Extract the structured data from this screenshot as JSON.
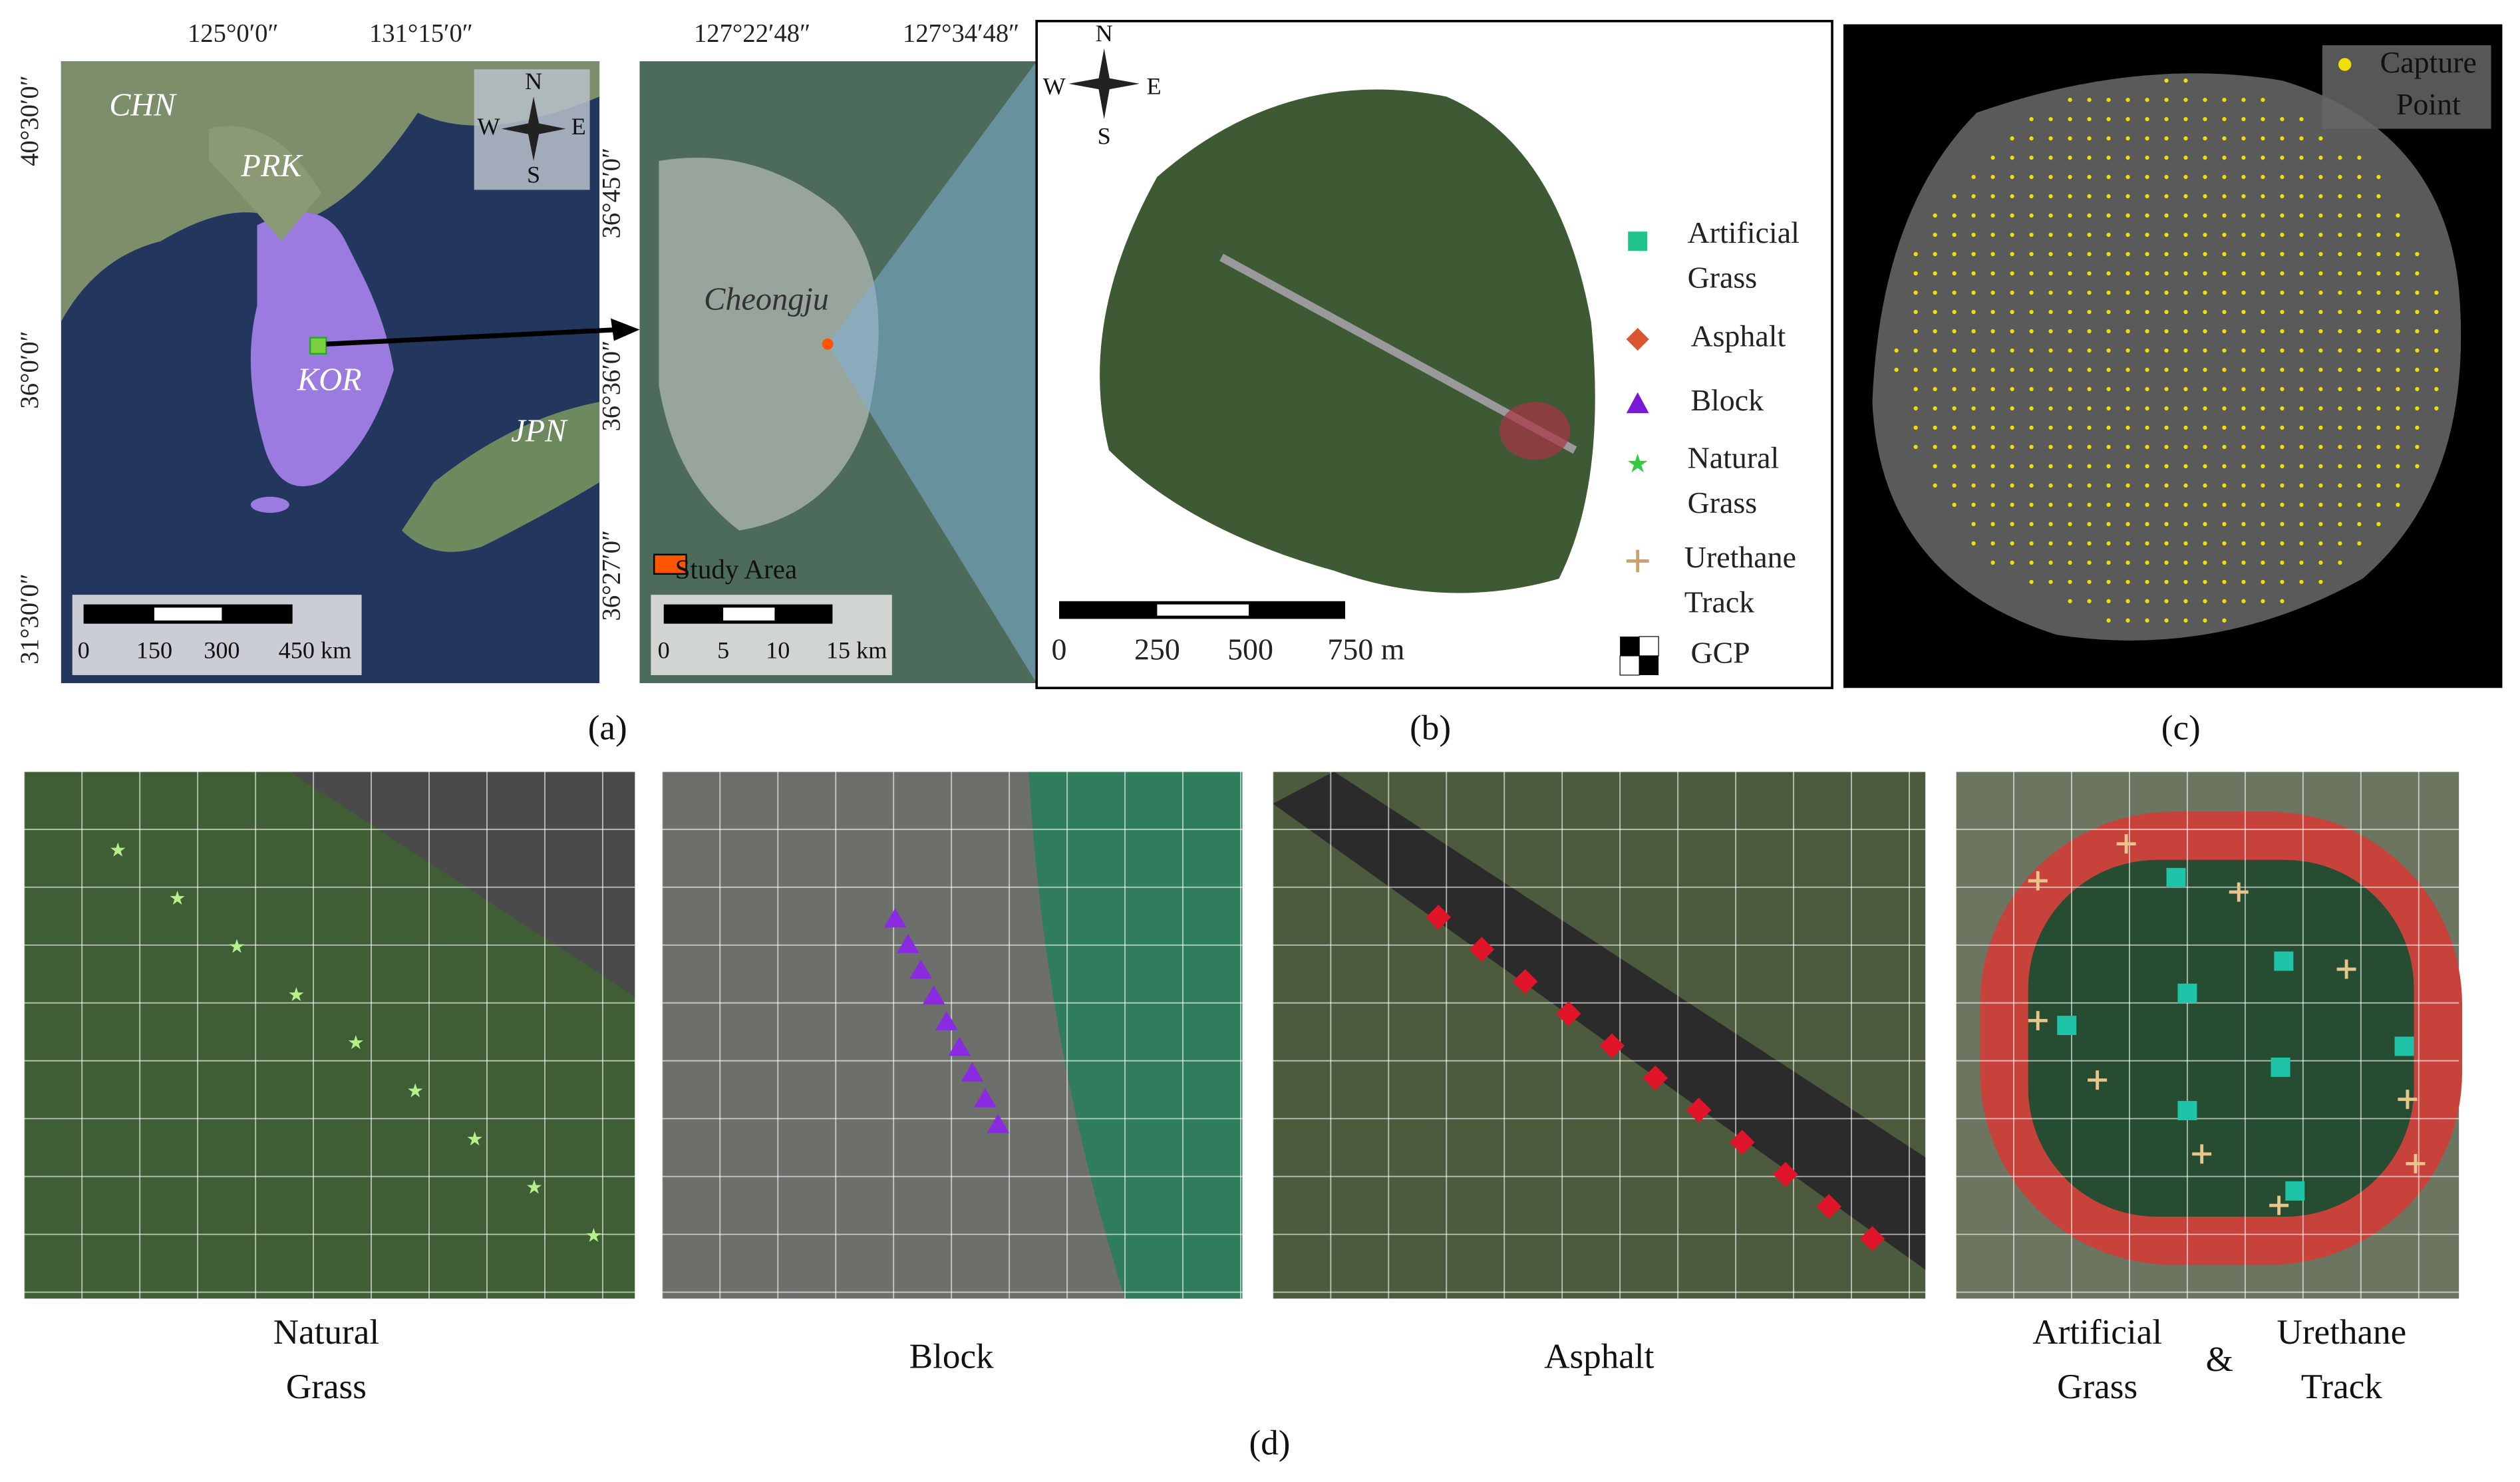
{
  "panel_a": {
    "lon_labels": [
      "125°0′0″",
      "131°15′0″"
    ],
    "lat_labels": [
      "40°30′0″",
      "36°0′0″",
      "31°30′0″"
    ],
    "places": [
      "CHN",
      "PRK",
      "KOR",
      "JPN"
    ],
    "compass": [
      "N",
      "S",
      "E",
      "W"
    ],
    "scale": [
      "0",
      "150",
      "300",
      "450 km"
    ],
    "caption": "(a)"
  },
  "panel_a_inset": {
    "lon_labels": [
      "127°22′48″",
      "127°34′48″"
    ],
    "lat_labels": [
      "36°45′0″",
      "36°36′0″",
      "36°27′0″"
    ],
    "place": "Cheongju",
    "legend": "Study Area",
    "scale": [
      "0",
      "5",
      "10",
      "15 km"
    ]
  },
  "panel_b": {
    "compass": [
      "N",
      "S",
      "E",
      "W"
    ],
    "legend": [
      "Artificial Grass",
      "Asphalt",
      "Block",
      "Natural Grass",
      "Urethane Track",
      "GCP"
    ],
    "scale": [
      "0",
      "250",
      "500",
      "750 m"
    ],
    "caption": "(b)"
  },
  "panel_c": {
    "legend": "Capture Point",
    "caption": "(c)"
  },
  "panel_d": {
    "labels": [
      "Natural Grass",
      "Block",
      "Asphalt",
      "Artificial Grass",
      "&",
      "Urethane Track"
    ],
    "caption": "(d)"
  }
}
